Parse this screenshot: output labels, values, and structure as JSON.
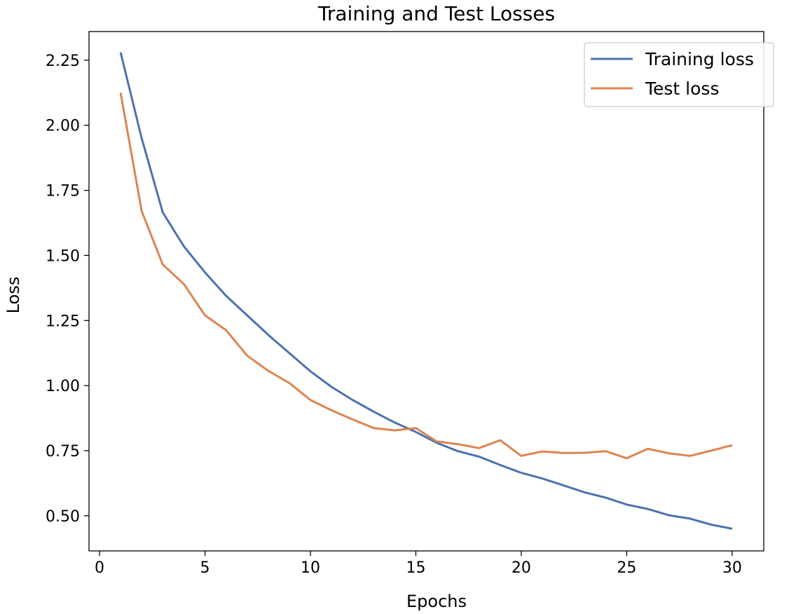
{
  "chart_data": {
    "type": "line",
    "title": "Training and Test Losses",
    "xlabel": "Epochs",
    "ylabel": "Loss",
    "xlim": [
      -0.5,
      31.5
    ],
    "ylim": [
      0.365,
      2.36
    ],
    "x_ticks": [
      0,
      5,
      10,
      15,
      20,
      25,
      30
    ],
    "y_ticks": [
      0.5,
      0.75,
      1.0,
      1.25,
      1.5,
      1.75,
      2.0,
      2.25
    ],
    "x_tick_labels": [
      "0",
      "5",
      "10",
      "15",
      "20",
      "25",
      "30"
    ],
    "y_tick_labels": [
      "0.50",
      "0.75",
      "1.00",
      "1.25",
      "1.50",
      "1.75",
      "2.00",
      "2.25"
    ],
    "grid": false,
    "legend_position": "top-right",
    "x": [
      1,
      2,
      3,
      4,
      5,
      6,
      7,
      8,
      9,
      10,
      11,
      12,
      13,
      14,
      15,
      16,
      17,
      18,
      19,
      20,
      21,
      22,
      23,
      24,
      25,
      26,
      27,
      28,
      29,
      30
    ],
    "series": [
      {
        "name": "Training loss",
        "color": "#4c72b0",
        "values": [
          2.28,
          1.95,
          1.665,
          1.535,
          1.435,
          1.345,
          1.27,
          1.195,
          1.125,
          1.055,
          0.995,
          0.945,
          0.9,
          0.858,
          0.822,
          0.78,
          0.748,
          0.727,
          0.695,
          0.665,
          0.643,
          0.617,
          0.59,
          0.57,
          0.543,
          0.526,
          0.502,
          0.489,
          0.466,
          0.45
        ]
      },
      {
        "name": "Test loss",
        "color": "#dd8452",
        "values": [
          2.125,
          1.67,
          1.465,
          1.39,
          1.27,
          1.213,
          1.115,
          1.057,
          1.01,
          0.945,
          0.905,
          0.87,
          0.837,
          0.828,
          0.837,
          0.785,
          0.775,
          0.76,
          0.79,
          0.73,
          0.747,
          0.741,
          0.742,
          0.748,
          0.721,
          0.757,
          0.74,
          0.73,
          0.75,
          0.771
        ]
      }
    ]
  }
}
